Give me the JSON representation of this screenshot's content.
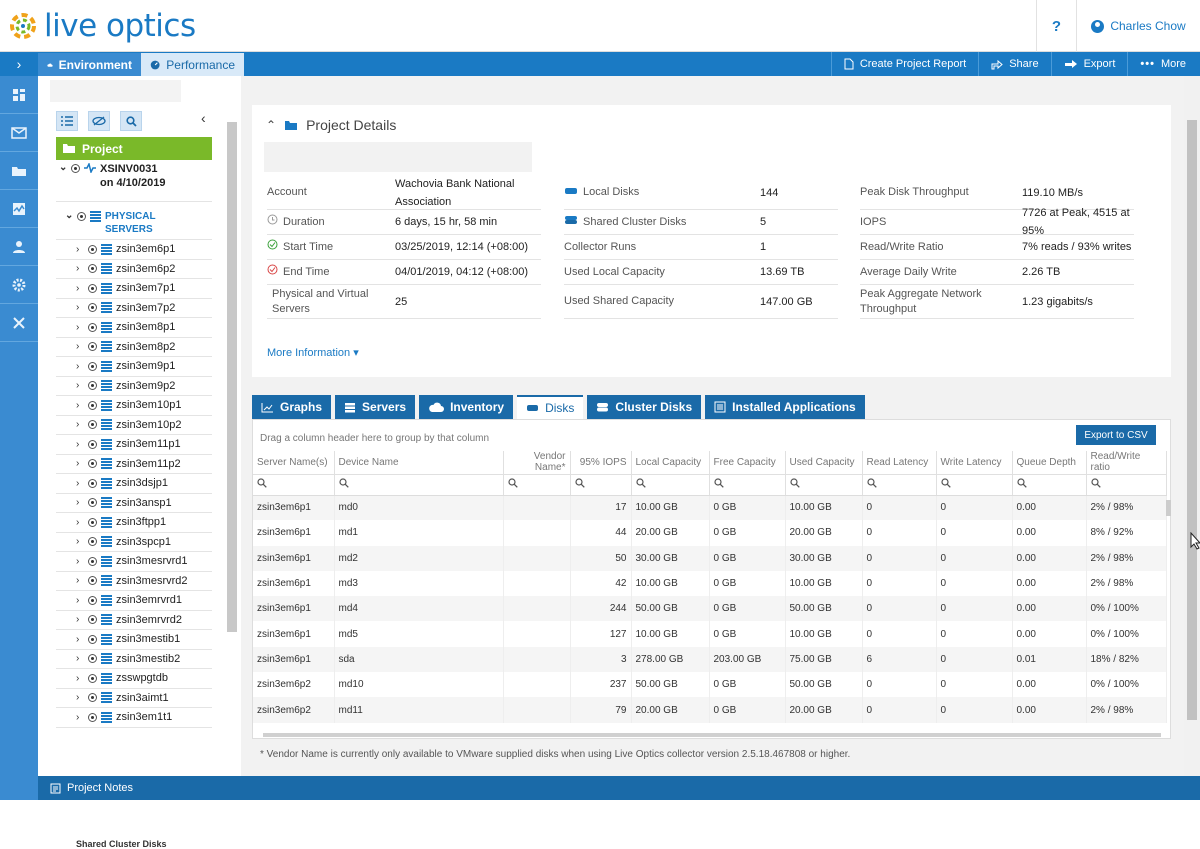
{
  "app": {
    "logo_text": "live optics",
    "brand_color": "#1a7ac4",
    "accent_green": "#7ab929"
  },
  "header": {
    "help_label": "?",
    "user_name": "Charles Chow"
  },
  "nav": {
    "tabs": [
      {
        "label": "Environment",
        "icon": "cloud-icon"
      },
      {
        "label": "Performance",
        "icon": "gauge-icon"
      }
    ],
    "actions": [
      {
        "label": "Create Project Report",
        "icon": "document-icon"
      },
      {
        "label": "Share",
        "icon": "share-icon"
      },
      {
        "label": "Export",
        "icon": "export-icon"
      },
      {
        "label": "More",
        "icon": "ellipsis-icon"
      }
    ]
  },
  "sidebar": {
    "project_label": "Project",
    "collector": {
      "name": "XSINV0031 on 4/10/2019"
    },
    "group": {
      "name": "PHYSICAL SERVERS"
    },
    "servers": [
      "zsin3em6p1",
      "zsin3em6p2",
      "zsin3em7p1",
      "zsin3em7p2",
      "zsin3em8p1",
      "zsin3em8p2",
      "zsin3em9p1",
      "zsin3em9p2",
      "zsin3em10p1",
      "zsin3em10p2",
      "zsin3em11p1",
      "zsin3em11p2",
      "zsin3dsjp1",
      "zsin3ansp1",
      "zsin3ftpp1",
      "zsin3spcp1",
      "zsin3mesrvrd1",
      "zsin3mesrvrd2",
      "zsin3emrvrd1",
      "zsin3emrvrd2",
      "zsin3mestib1",
      "zsin3mestib2",
      "zsswpgtdb",
      "zsin3aimt1",
      "zsin3em1t1"
    ],
    "footer_label": "Shared Cluster Disks"
  },
  "project_details": {
    "title": "Project Details",
    "col1": [
      {
        "label": "Account",
        "value": "Wachovia Bank National Association",
        "icon": ""
      },
      {
        "label": "Duration",
        "value": "6 days, 15 hr, 58 min",
        "icon": "clock-icon"
      },
      {
        "label": "Start Time",
        "value": "03/25/2019, 12:14 (+08:00)",
        "icon": "check-circle-icon"
      },
      {
        "label": "End Time",
        "value": "04/01/2019, 04:12 (+08:00)",
        "icon": "stop-circle-icon"
      },
      {
        "label": "Physical and Virtual Servers",
        "value": "25",
        "icon": "server-icon"
      }
    ],
    "col2": [
      {
        "label": "Local Disks",
        "value": "144",
        "icon": "disk-icon"
      },
      {
        "label": "Shared Cluster Disks",
        "value": "5",
        "icon": "shared-disk-icon"
      },
      {
        "label": "Collector Runs",
        "value": "1",
        "icon": ""
      },
      {
        "label": "Used Local Capacity",
        "value": "13.69 TB",
        "icon": ""
      },
      {
        "label": "Used Shared Capacity",
        "value": "147.00 GB",
        "icon": ""
      }
    ],
    "col3": [
      {
        "label": "Peak Disk Throughput",
        "value": "119.10 MB/s"
      },
      {
        "label": "IOPS",
        "value": "7726 at Peak, 4515 at 95%"
      },
      {
        "label": "Read/Write Ratio",
        "value": "7% reads / 93% writes"
      },
      {
        "label": "Average Daily Write",
        "value": "2.26 TB"
      },
      {
        "label": "Peak Aggregate Network Throughput",
        "value": "1.23 gigabits/s"
      }
    ],
    "more_info": "More Information"
  },
  "tabs": [
    {
      "label": "Graphs",
      "icon": "chart-icon",
      "active": false
    },
    {
      "label": "Servers",
      "icon": "server-icon",
      "active": false
    },
    {
      "label": "Inventory",
      "icon": "cloud-icon",
      "active": false
    },
    {
      "label": "Disks",
      "icon": "disk-icon",
      "active": true
    },
    {
      "label": "Cluster Disks",
      "icon": "cluster-disk-icon",
      "active": false
    },
    {
      "label": "Installed Applications",
      "icon": "list-icon",
      "active": false
    }
  ],
  "grid": {
    "group_hint": "Drag a column header here to group by that column",
    "export_label": "Export to CSV",
    "columns": [
      "Server Name(s)",
      "Device Name",
      "Vendor Name*",
      "95% IOPS",
      "Local Capacity",
      "Free Capacity",
      "Used Capacity",
      "Read Latency",
      "Write Latency",
      "Queue Depth",
      "Read/Write ratio"
    ],
    "rows": [
      [
        "zsin3em6p1",
        "md0",
        "",
        "17",
        "10.00 GB",
        "0 GB",
        "10.00 GB",
        "0",
        "0",
        "0.00",
        "2% / 98%"
      ],
      [
        "zsin3em6p1",
        "md1",
        "",
        "44",
        "20.00 GB",
        "0 GB",
        "20.00 GB",
        "0",
        "0",
        "0.00",
        "8% / 92%"
      ],
      [
        "zsin3em6p1",
        "md2",
        "",
        "50",
        "30.00 GB",
        "0 GB",
        "30.00 GB",
        "0",
        "0",
        "0.00",
        "2% / 98%"
      ],
      [
        "zsin3em6p1",
        "md3",
        "",
        "42",
        "10.00 GB",
        "0 GB",
        "10.00 GB",
        "0",
        "0",
        "0.00",
        "2% / 98%"
      ],
      [
        "zsin3em6p1",
        "md4",
        "",
        "244",
        "50.00 GB",
        "0 GB",
        "50.00 GB",
        "0",
        "0",
        "0.00",
        "0% / 100%"
      ],
      [
        "zsin3em6p1",
        "md5",
        "",
        "127",
        "10.00 GB",
        "0 GB",
        "10.00 GB",
        "0",
        "0",
        "0.00",
        "0% / 100%"
      ],
      [
        "zsin3em6p1",
        "sda",
        "",
        "3",
        "278.00 GB",
        "203.00 GB",
        "75.00 GB",
        "6",
        "0",
        "0.01",
        "18% / 82%"
      ],
      [
        "zsin3em6p2",
        "md10",
        "",
        "237",
        "50.00 GB",
        "0 GB",
        "50.00 GB",
        "0",
        "0",
        "0.00",
        "0% / 100%"
      ],
      [
        "zsin3em6p2",
        "md11",
        "",
        "79",
        "20.00 GB",
        "0 GB",
        "20.00 GB",
        "0",
        "0",
        "0.00",
        "2% / 98%"
      ]
    ],
    "footnote": "* Vendor Name is currently only available to VMware supplied disks when using Live Optics collector version 2.5.18.467808 or higher."
  },
  "bottom": {
    "project_notes": "Project Notes"
  }
}
